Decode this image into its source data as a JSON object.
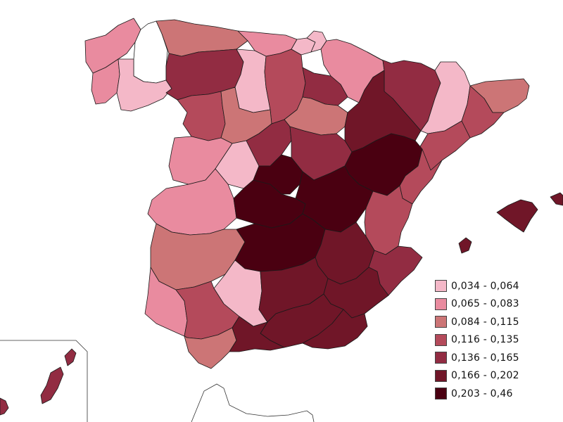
{
  "legend": {
    "items": [
      {
        "label": "0,034 - 0,064",
        "color": "#f4b8c8"
      },
      {
        "label": "0,065 - 0,083",
        "color": "#e98b9f"
      },
      {
        "label": "0,084 - 0,115",
        "color": "#cc7576"
      },
      {
        "label": "0,116 - 0,135",
        "color": "#b44a5b"
      },
      {
        "label": "0,136 - 0,165",
        "color": "#922c42"
      },
      {
        "label": "0,166 - 0,202",
        "color": "#701628"
      },
      {
        "label": "0,203 - 0,46",
        "color": "#4a0011"
      }
    ]
  },
  "regions": [
    {
      "name": "galicia-a-coruna",
      "class": 1
    },
    {
      "name": "lugo",
      "class": null
    },
    {
      "name": "pontevedra",
      "class": 1
    },
    {
      "name": "ourense",
      "class": 0
    },
    {
      "name": "asturias",
      "class": 2
    },
    {
      "name": "cantabria",
      "class": 1
    },
    {
      "name": "bizkaia",
      "class": 0
    },
    {
      "name": "gipuzkoa",
      "class": 0
    },
    {
      "name": "navarra",
      "class": 1
    },
    {
      "name": "leon",
      "class": 4
    },
    {
      "name": "palencia",
      "class": 0
    },
    {
      "name": "burgos",
      "class": 3
    },
    {
      "name": "la-rioja",
      "class": 4
    },
    {
      "name": "zamora",
      "class": 3
    },
    {
      "name": "valladolid",
      "class": 2
    },
    {
      "name": "soria",
      "class": 2
    },
    {
      "name": "huesca",
      "class": 4
    },
    {
      "name": "zaragoza",
      "class": 5
    },
    {
      "name": "lleida",
      "class": 0
    },
    {
      "name": "girona",
      "class": 2
    },
    {
      "name": "barcelona",
      "class": 3
    },
    {
      "name": "tarragona",
      "class": 3
    },
    {
      "name": "salamanca",
      "class": 1
    },
    {
      "name": "avila",
      "class": 0
    },
    {
      "name": "segovia",
      "class": 4
    },
    {
      "name": "guadalajara",
      "class": 4
    },
    {
      "name": "teruel",
      "class": 6
    },
    {
      "name": "castellon",
      "class": 3
    },
    {
      "name": "caceres",
      "class": 1
    },
    {
      "name": "toledo",
      "class": 6
    },
    {
      "name": "madrid",
      "class": 6
    },
    {
      "name": "cuenca",
      "class": 6
    },
    {
      "name": "valencia",
      "class": 3
    },
    {
      "name": "badajoz",
      "class": 2
    },
    {
      "name": "ciudad-real",
      "class": 6
    },
    {
      "name": "albacete",
      "class": 5
    },
    {
      "name": "alicante",
      "class": 4
    },
    {
      "name": "cordoba",
      "class": 0
    },
    {
      "name": "jaen",
      "class": 5
    },
    {
      "name": "murcia",
      "class": 5
    },
    {
      "name": "huelva",
      "class": 1
    },
    {
      "name": "sevilla",
      "class": 3
    },
    {
      "name": "granada",
      "class": 5
    },
    {
      "name": "almeria",
      "class": 5
    },
    {
      "name": "cadiz",
      "class": 2
    },
    {
      "name": "malaga",
      "class": 5
    },
    {
      "name": "mallorca",
      "class": 5
    },
    {
      "name": "menorca",
      "class": 5
    },
    {
      "name": "ibiza",
      "class": 5
    },
    {
      "name": "fuerteventura",
      "class": 4
    },
    {
      "name": "lanzarote",
      "class": 4
    },
    {
      "name": "canarias-west",
      "class": 4
    }
  ]
}
